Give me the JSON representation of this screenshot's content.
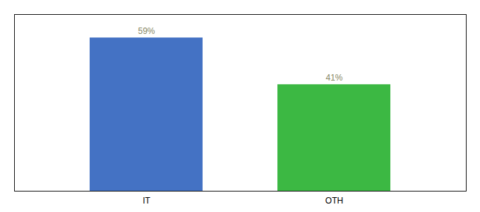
{
  "chart_data": {
    "type": "bar",
    "categories": [
      "IT",
      "OTH"
    ],
    "values": [
      59,
      41
    ],
    "value_labels": [
      "59%",
      "41%"
    ],
    "colors": [
      "#4472C4",
      "#3CB843"
    ],
    "ylim": [
      0,
      68
    ],
    "yticks": [],
    "tick_labels": "x",
    "data_labels": true,
    "grid": false
  }
}
